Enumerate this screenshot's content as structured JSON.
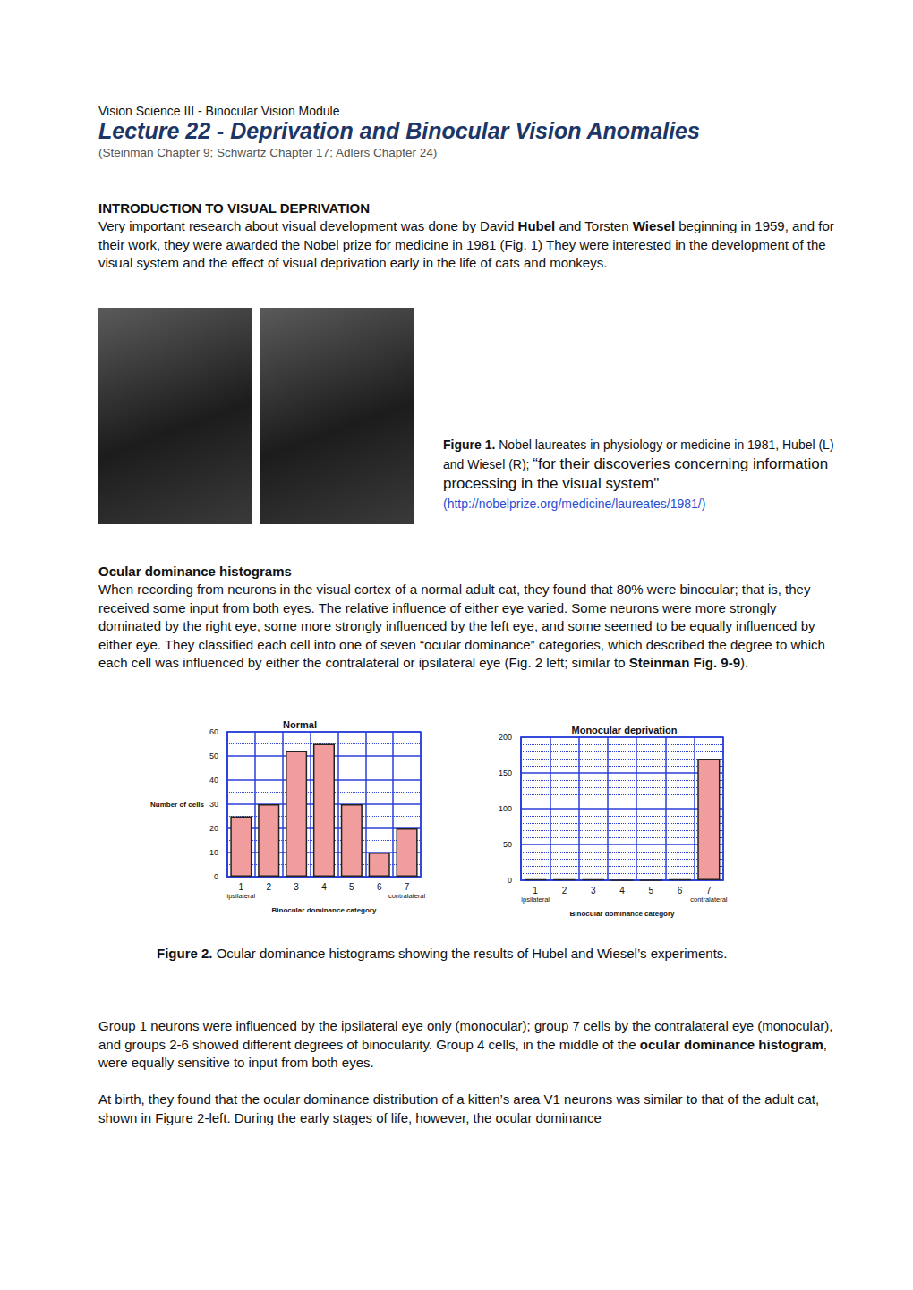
{
  "header": {
    "course": "Vision Science III - Binocular Vision Module",
    "title": "Lecture 22 - Deprivation and Binocular Vision Anomalies",
    "references": "(Steinman Chapter 9; Schwartz Chapter 17; Adlers Chapter 24)"
  },
  "sections": [
    {
      "heading": "INTRODUCTION TO VISUAL DEPRIVATION",
      "paragraphs": [
        [
          "Very important research about visual development was done by David ",
          {
            "bold": "Hubel"
          },
          " and Torsten ",
          {
            "bold": "Wiesel"
          },
          " beginning in 1959, and for their work, they were awarded the Nobel prize for medicine in 1981 (Fig. 1) They were interested in the development of the visual system and the effect of visual deprivation early in the life of cats and monkeys."
        ]
      ]
    },
    {
      "heading": "Ocular dominance histograms",
      "paragraphs": [
        [
          "When recording from neurons in the visual cortex of a normal adult cat, they found that 80% were binocular; that is, they received some input from both eyes.  The relative influence of either eye varied.  Some neurons were more strongly dominated by the right eye, some more strongly influenced by the left eye, and some seemed to be equally influenced by either eye.  They classified each cell into one of seven “ocular dominance” categories, which described the degree to which each cell was influenced by either the contralateral or ipsilateral eye (Fig. 2 left; similar to ",
          {
            "bold": "Steinman Fig. 9-9"
          },
          ")."
        ],
        [
          "Group 1 neurons were influenced by the ipsilateral eye only (monocular); group 7 cells by the contralateral eye (monocular), and groups 2-6 showed different degrees of binocularity.  Group 4 cells, in the middle of the ",
          {
            "bold": "ocular dominance histogram"
          },
          ", were equally sensitive to input from both eyes."
        ],
        [
          "At birth, they found that the ocular dominance distribution of a kitten’s area V1 neurons was similar to that of the adult cat, shown in Figure 2-left.  During the early stages of life, however, the ocular dominance"
        ]
      ]
    }
  ],
  "figure1": {
    "label": "Figure 1.",
    "caption": "Nobel laureates in physiology or medicine in 1981, Hubel (L) and Wiesel (R); ",
    "quote": "“for their discoveries concerning information processing in the visual system\"",
    "link": "(http://nobelprize.org/medicine/laureates/1981/)"
  },
  "figure2": {
    "label": "Figure 2.",
    "caption": "Ocular dominance histograms showing the results of Hubel and Wiesel’s experiments."
  },
  "chart_data": [
    {
      "type": "bar",
      "title": "Normal",
      "categories": [
        "1",
        "2",
        "3",
        "4",
        "5",
        "6",
        "7"
      ],
      "values": [
        25,
        30,
        52,
        55,
        30,
        10,
        20
      ],
      "color": "#f29d9d",
      "xlabel": "Binocular dominance category",
      "ylabel": "Number of cells",
      "x_end_labels": [
        "ipsilateral",
        "contralateral"
      ],
      "ylim": [
        0,
        60
      ],
      "yticks": [
        0,
        10,
        20,
        30,
        40,
        50,
        60
      ],
      "grid": true
    },
    {
      "type": "bar",
      "title": "Monocular deprivation",
      "categories": [
        "1",
        "2",
        "3",
        "4",
        "5",
        "6",
        "7"
      ],
      "values": [
        1,
        1,
        1,
        0,
        0,
        1,
        170
      ],
      "color": "#f29d9d",
      "xlabel": "Binocular dominance category",
      "x_end_labels": [
        "ipsilateral",
        "contralateral"
      ],
      "ylim": [
        0,
        200
      ],
      "yticks": [
        0,
        50,
        100,
        150,
        200
      ],
      "grid": true
    }
  ]
}
